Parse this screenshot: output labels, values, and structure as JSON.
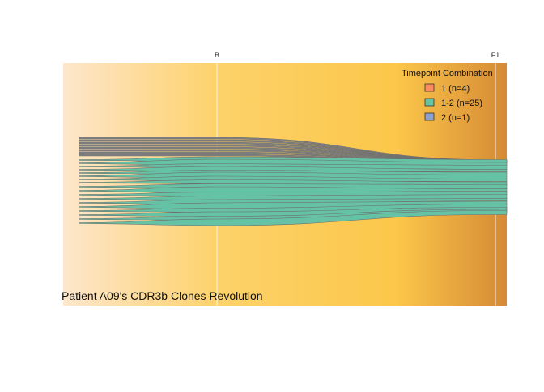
{
  "chart_data": {
    "type": "area",
    "subtype": "alluvial",
    "title": "Patient A09's CDR3b Clones Revolution",
    "x": [
      "B",
      "F1"
    ],
    "legend": {
      "title": "Timepoint Combination",
      "placement": "top-right",
      "entries": [
        {
          "label": "1 (n=4)",
          "color": "#fc8d62"
        },
        {
          "label": "1-2 (n=25)",
          "color": "#66c2a5"
        },
        {
          "label": "2 (n=1)",
          "color": "#8da0cb"
        }
      ]
    },
    "stream_colors": {
      "only_B": "#808080",
      "shared": "#66c2a5",
      "only_F1": "#8da0cb",
      "outline": "#6e6e6e"
    },
    "background_gradient": [
      "#fde6cc",
      "#fdd26a",
      "#fcc74a",
      "#d58a35"
    ],
    "grid": "vertical at timepoints"
  }
}
